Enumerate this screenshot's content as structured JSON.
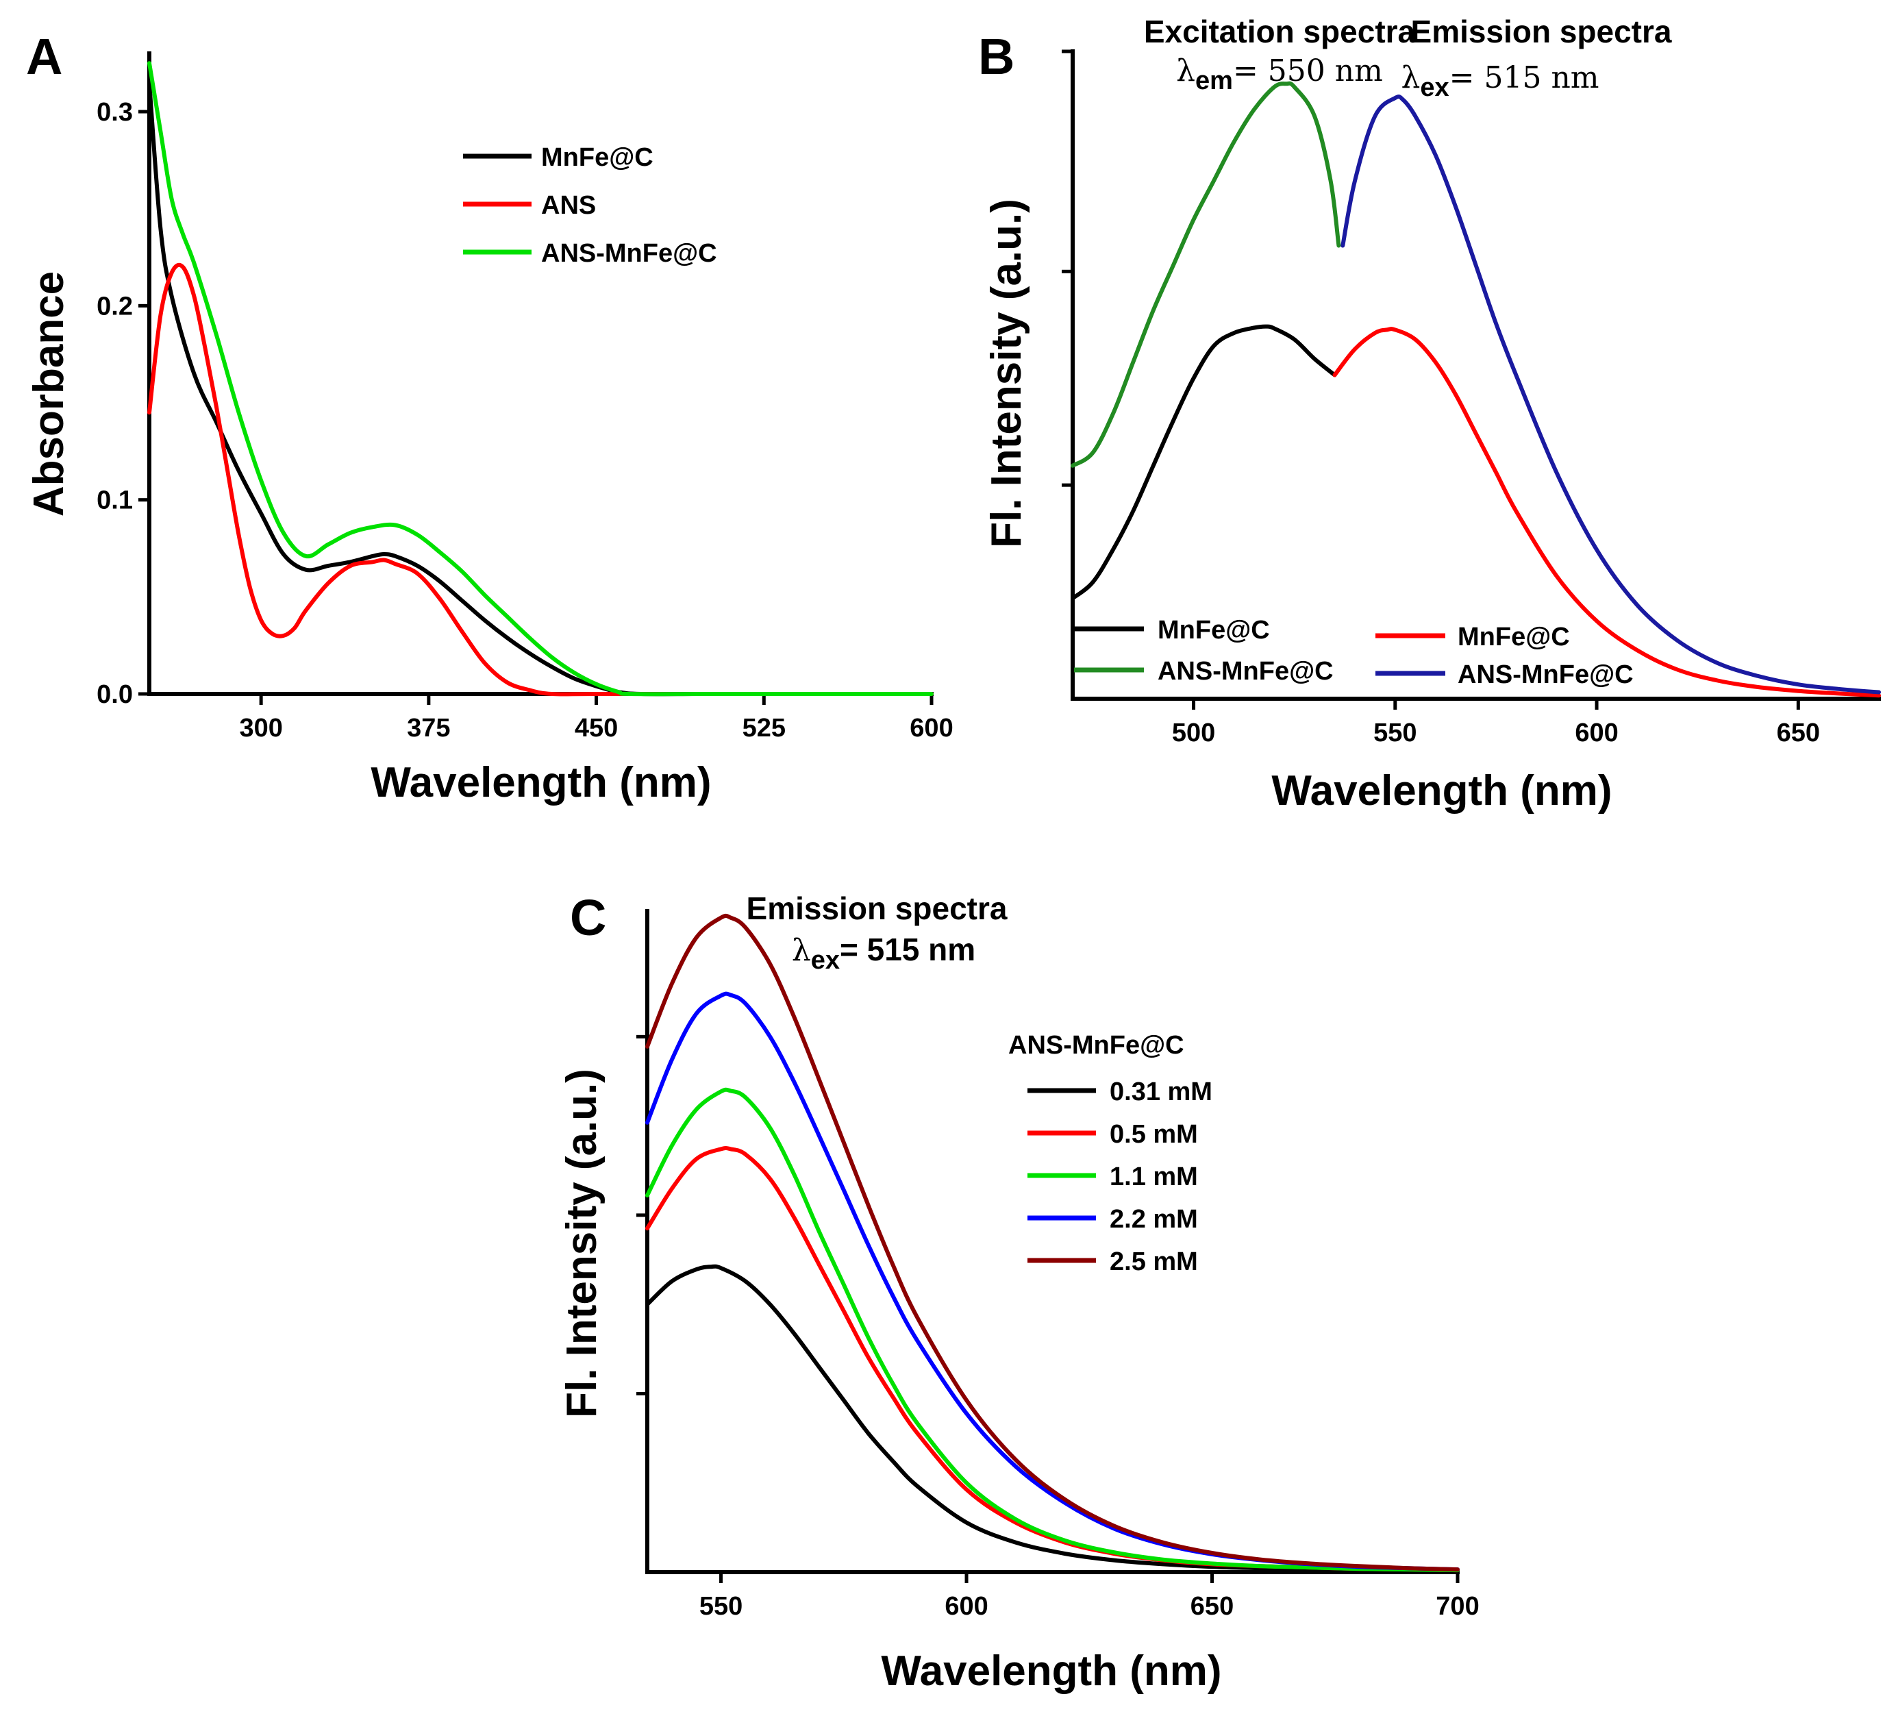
{
  "chart_data": [
    {
      "panel": "A",
      "type": "line",
      "title": "",
      "xlabel": "Wavelength (nm)",
      "ylabel": "Absorbance",
      "xlim": [
        250,
        600
      ],
      "ylim": [
        0.0,
        0.33
      ],
      "xticks": [
        300,
        375,
        450,
        525,
        600
      ],
      "xtick_labels": [
        "300",
        "375",
        "450",
        "525",
        "600"
      ],
      "yticks": [
        0.0,
        0.1,
        0.2,
        0.3
      ],
      "ytick_labels": [
        "0.0",
        "0.1",
        "0.2",
        "0.3"
      ],
      "legend_position": "top-right",
      "series": [
        {
          "name": "MnFe@C",
          "color": "#000000",
          "x": [
            250,
            255,
            260,
            270,
            280,
            290,
            300,
            310,
            320,
            330,
            340,
            350,
            355,
            360,
            370,
            380,
            390,
            400,
            410,
            420,
            430,
            440,
            450,
            460,
            470,
            500,
            550,
            600
          ],
          "y": [
            0.315,
            0.24,
            0.205,
            0.165,
            0.14,
            0.115,
            0.093,
            0.072,
            0.064,
            0.066,
            0.068,
            0.071,
            0.072,
            0.071,
            0.066,
            0.058,
            0.048,
            0.038,
            0.029,
            0.021,
            0.014,
            0.008,
            0.004,
            0.001,
            0.0,
            0.0,
            0.0,
            0.0
          ]
        },
        {
          "name": "ANS",
          "color": "#ff0000",
          "x": [
            250,
            255,
            260,
            265,
            270,
            275,
            280,
            285,
            290,
            295,
            300,
            305,
            310,
            315,
            320,
            330,
            340,
            350,
            355,
            360,
            370,
            380,
            390,
            400,
            410,
            420,
            430,
            450,
            500,
            550,
            600
          ],
          "y": [
            0.145,
            0.195,
            0.217,
            0.22,
            0.205,
            0.178,
            0.148,
            0.115,
            0.082,
            0.055,
            0.038,
            0.031,
            0.03,
            0.034,
            0.043,
            0.057,
            0.066,
            0.068,
            0.069,
            0.067,
            0.062,
            0.049,
            0.032,
            0.016,
            0.006,
            0.002,
            0.0,
            0.0,
            0.0,
            0.0,
            0.0
          ]
        },
        {
          "name": "ANS-MnFe@C",
          "color": "#00e000",
          "x": [
            250,
            255,
            260,
            265,
            270,
            280,
            290,
            300,
            310,
            320,
            330,
            340,
            350,
            360,
            370,
            380,
            390,
            400,
            410,
            420,
            430,
            440,
            450,
            460,
            465,
            500,
            550,
            600
          ],
          "y": [
            0.325,
            0.29,
            0.255,
            0.237,
            0.222,
            0.185,
            0.145,
            0.11,
            0.083,
            0.071,
            0.077,
            0.083,
            0.086,
            0.087,
            0.082,
            0.073,
            0.063,
            0.051,
            0.04,
            0.029,
            0.019,
            0.011,
            0.005,
            0.001,
            0.0,
            0.0,
            0.0,
            0.0
          ]
        }
      ]
    },
    {
      "panel": "B",
      "type": "line",
      "title": "",
      "xlabel": "Wavelength (nm)",
      "ylabel": "Fl. Intensity (a.u.)",
      "xlim": [
        470,
        670
      ],
      "ylim": [
        0,
        1.0
      ],
      "xticks": [
        500,
        550,
        600,
        650
      ],
      "xtick_labels": [
        "500",
        "550",
        "600",
        "650"
      ],
      "yticks": [
        0.33,
        0.66,
        1.0
      ],
      "headers": [
        {
          "title": "Excitation spectra",
          "lambda_symbol": "λ",
          "subscript": "em",
          "rest": "= 550 nm"
        },
        {
          "title": "Emission spectra",
          "lambda_symbol": "λ",
          "subscript": "ex",
          "rest": "= 515 nm"
        }
      ],
      "legend_position": "bottom-left",
      "series": [
        {
          "name": "MnFe@C",
          "color": "#000000",
          "x": [
            470,
            475,
            480,
            485,
            490,
            495,
            500,
            505,
            510,
            515,
            518,
            520,
            525,
            530,
            535
          ],
          "y": [
            0.155,
            0.18,
            0.23,
            0.29,
            0.36,
            0.43,
            0.495,
            0.545,
            0.565,
            0.573,
            0.575,
            0.572,
            0.555,
            0.525,
            0.5
          ]
        },
        {
          "name": "ANS-MnFe@C",
          "color": "#228b22",
          "x": [
            470,
            475,
            480,
            485,
            490,
            495,
            500,
            505,
            510,
            515,
            520,
            523,
            525,
            530,
            534,
            536
          ],
          "y": [
            0.36,
            0.38,
            0.44,
            0.52,
            0.6,
            0.67,
            0.74,
            0.8,
            0.86,
            0.91,
            0.945,
            0.95,
            0.945,
            0.9,
            0.8,
            0.7
          ]
        },
        {
          "name": "MnFe@C",
          "color": "#ff0000",
          "x": [
            535,
            540,
            545,
            548,
            550,
            555,
            560,
            565,
            570,
            575,
            580,
            590,
            600,
            610,
            620,
            630,
            640,
            650,
            660,
            670
          ],
          "y": [
            0.5,
            0.54,
            0.565,
            0.57,
            0.57,
            0.555,
            0.52,
            0.47,
            0.41,
            0.35,
            0.29,
            0.19,
            0.12,
            0.075,
            0.045,
            0.028,
            0.018,
            0.012,
            0.008,
            0.005
          ]
        },
        {
          "name": "ANS-MnFe@C",
          "color": "#1a1aa0",
          "x": [
            537,
            540,
            545,
            550,
            552,
            555,
            560,
            565,
            570,
            575,
            580,
            590,
            600,
            610,
            620,
            630,
            640,
            650,
            660,
            670
          ],
          "y": [
            0.7,
            0.8,
            0.9,
            0.928,
            0.925,
            0.9,
            0.84,
            0.76,
            0.67,
            0.58,
            0.5,
            0.35,
            0.23,
            0.145,
            0.09,
            0.055,
            0.035,
            0.022,
            0.015,
            0.01
          ]
        }
      ]
    },
    {
      "panel": "C",
      "type": "line",
      "title": "",
      "xlabel": "Wavelength (nm)",
      "ylabel": "Fl. Intensity (a.u.)",
      "xlim": [
        535,
        700
      ],
      "ylim": [
        0,
        1.0
      ],
      "xticks": [
        550,
        600,
        650,
        700
      ],
      "xtick_labels": [
        "550",
        "600",
        "650",
        "700"
      ],
      "yticks": [
        0.27,
        0.54,
        0.81
      ],
      "headers": [
        {
          "title": "Emission spectra",
          "lambda_symbol": "λ",
          "subscript": "ex",
          "rest": "= 515 nm"
        }
      ],
      "legend_title": "ANS-MnFe@C",
      "legend_position": "top-right",
      "series": [
        {
          "name": "0.31 mM",
          "color": "#000000",
          "x": [
            535,
            540,
            545,
            548,
            550,
            555,
            560,
            565,
            570,
            575,
            580,
            585,
            590,
            600,
            610,
            620,
            630,
            640,
            650,
            660,
            670,
            680,
            690,
            700
          ],
          "y": [
            0.405,
            0.44,
            0.458,
            0.462,
            0.46,
            0.44,
            0.405,
            0.36,
            0.31,
            0.26,
            0.21,
            0.168,
            0.13,
            0.075,
            0.045,
            0.028,
            0.018,
            0.012,
            0.008,
            0.006,
            0.005,
            0.004,
            0.003,
            0.003
          ]
        },
        {
          "name": "0.5 mM",
          "color": "#ff0000",
          "x": [
            535,
            540,
            545,
            550,
            552,
            555,
            560,
            565,
            570,
            575,
            580,
            585,
            590,
            600,
            610,
            620,
            630,
            640,
            650,
            660,
            670,
            680,
            690,
            700
          ],
          "y": [
            0.52,
            0.58,
            0.625,
            0.64,
            0.64,
            0.632,
            0.595,
            0.535,
            0.465,
            0.395,
            0.325,
            0.265,
            0.21,
            0.125,
            0.075,
            0.045,
            0.028,
            0.018,
            0.012,
            0.009,
            0.007,
            0.005,
            0.004,
            0.003
          ]
        },
        {
          "name": "1.1 mM",
          "color": "#00e000",
          "x": [
            535,
            540,
            545,
            550,
            552,
            555,
            560,
            565,
            570,
            575,
            580,
            585,
            590,
            600,
            610,
            620,
            630,
            640,
            650,
            660,
            670,
            680,
            690,
            700
          ],
          "y": [
            0.57,
            0.645,
            0.7,
            0.727,
            0.728,
            0.718,
            0.672,
            0.6,
            0.515,
            0.435,
            0.355,
            0.285,
            0.225,
            0.135,
            0.08,
            0.048,
            0.03,
            0.019,
            0.013,
            0.009,
            0.007,
            0.005,
            0.004,
            0.003
          ]
        },
        {
          "name": "2.2 mM",
          "color": "#0000ff",
          "x": [
            535,
            540,
            545,
            550,
            552,
            555,
            560,
            565,
            570,
            575,
            580,
            585,
            590,
            600,
            610,
            620,
            630,
            640,
            650,
            660,
            670,
            680,
            690,
            700
          ],
          "y": [
            0.68,
            0.775,
            0.845,
            0.872,
            0.873,
            0.86,
            0.81,
            0.74,
            0.66,
            0.578,
            0.495,
            0.418,
            0.35,
            0.24,
            0.16,
            0.105,
            0.066,
            0.042,
            0.027,
            0.018,
            0.012,
            0.008,
            0.006,
            0.004
          ]
        },
        {
          "name": "2.5 mM",
          "color": "#8b0000",
          "x": [
            535,
            540,
            545,
            550,
            552,
            555,
            560,
            565,
            570,
            575,
            580,
            585,
            590,
            600,
            610,
            620,
            630,
            640,
            650,
            660,
            670,
            680,
            690,
            700
          ],
          "y": [
            0.795,
            0.89,
            0.96,
            0.99,
            0.99,
            0.975,
            0.92,
            0.838,
            0.745,
            0.65,
            0.555,
            0.465,
            0.385,
            0.26,
            0.17,
            0.11,
            0.07,
            0.045,
            0.029,
            0.019,
            0.013,
            0.009,
            0.006,
            0.004
          ]
        }
      ]
    }
  ]
}
